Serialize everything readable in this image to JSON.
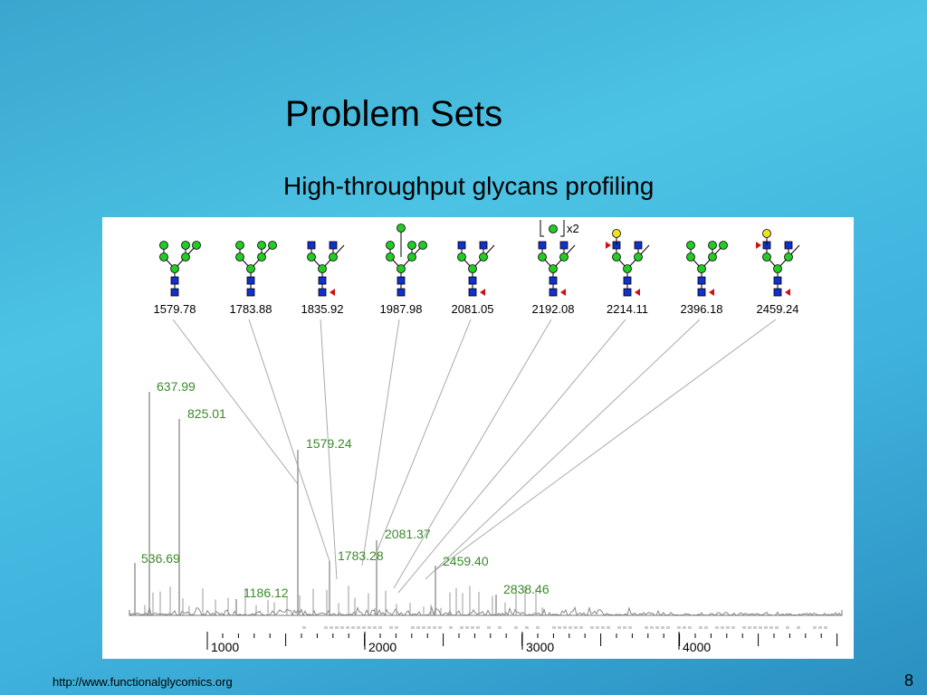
{
  "title": "Problem Sets",
  "subtitle": "High-throughput glycans profiling",
  "figure": {
    "scale_note": "x2",
    "structure_labels": [
      "1579.78",
      "1783.88",
      "1835.92",
      "1987.98",
      "2081.05",
      "2192.08",
      "2214.11",
      "2396.18",
      "2459.24"
    ],
    "peak_labels": [
      "637.99",
      "825.01",
      "1579.24",
      "2081.37",
      "536.69",
      "1783.28",
      "2459.40",
      "1186.12",
      "2838.46"
    ],
    "axis_labels": [
      "1000",
      "2000",
      "3000",
      "4000"
    ]
  },
  "footer": {
    "url": "http://www.functionalglycomics.org",
    "page_number": "8"
  }
}
